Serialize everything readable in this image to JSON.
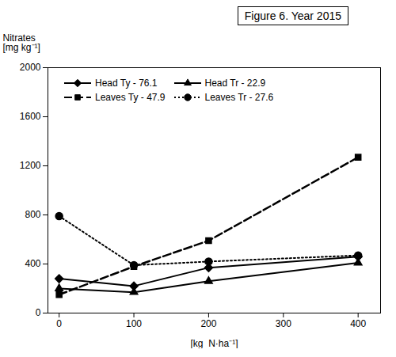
{
  "chart_data": {
    "type": "line",
    "title": "Figure 6. Year 2015",
    "x_label": "[kg  N·ha⁻¹]",
    "y_label": "Nitrates\n[mg kg⁻¹]",
    "x": [
      0,
      100,
      200,
      400
    ],
    "series": [
      {
        "name": "Head Ty - 76.1",
        "color": "#000000",
        "values": [
          280,
          220,
          370,
          460
        ],
        "marker": "diamond",
        "line_style": "solid"
      },
      {
        "name": "Head Tr - 22.9",
        "color": "#000000",
        "values": [
          200,
          170,
          260,
          410
        ],
        "marker": "triangle",
        "line_style": "solid"
      },
      {
        "name": "Leaves Ty - 47.9",
        "color": "#000000",
        "values": [
          150,
          380,
          590,
          1270
        ],
        "marker": "square",
        "line_style": "dashed"
      },
      {
        "name": "Leaves Tr - 27.6",
        "color": "#000000",
        "values": [
          790,
          390,
          420,
          470
        ],
        "marker": "circle",
        "line_style": "dotted"
      }
    ],
    "xlim": [
      -15,
      430
    ],
    "ylim": [
      0,
      2000
    ],
    "xticks": [
      0,
      100,
      200,
      300,
      400
    ],
    "yticks": [
      0,
      400,
      800,
      1200,
      1600,
      2000
    ],
    "grid": false,
    "legend": "upper left"
  }
}
